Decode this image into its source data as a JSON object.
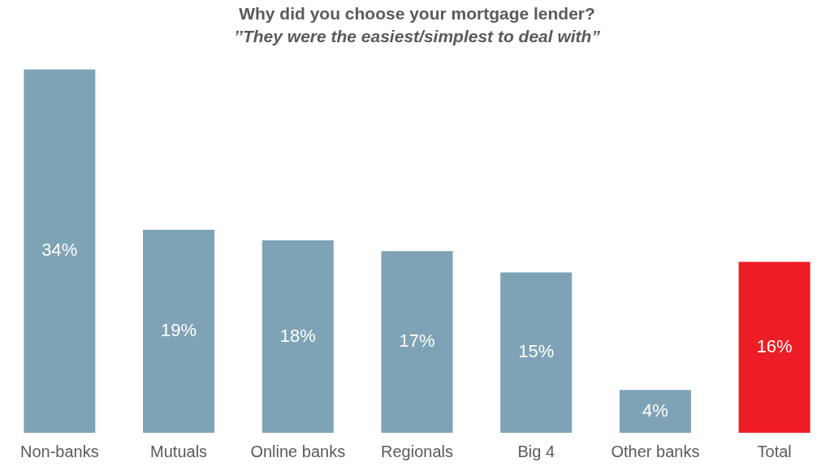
{
  "chart_data": {
    "type": "bar",
    "title": "Why did you choose your mortgage lender?",
    "subtitle": "’’They were the easiest/simplest to deal with”",
    "categories": [
      "Non-banks",
      "Mutuals",
      "Online banks",
      "Regionals",
      "Big 4",
      "Other banks",
      "Total"
    ],
    "values": [
      34,
      19,
      18,
      17,
      15,
      4,
      16
    ],
    "colors": [
      "#7fa3b6",
      "#7fa3b6",
      "#7fa3b6",
      "#7fa3b6",
      "#7fa3b6",
      "#7fa3b6",
      "#ee1c24"
    ],
    "value_labels": [
      "34%",
      "19%",
      "18%",
      "17%",
      "15%",
      "4%",
      "16%"
    ],
    "grid": false,
    "legend": false
  }
}
